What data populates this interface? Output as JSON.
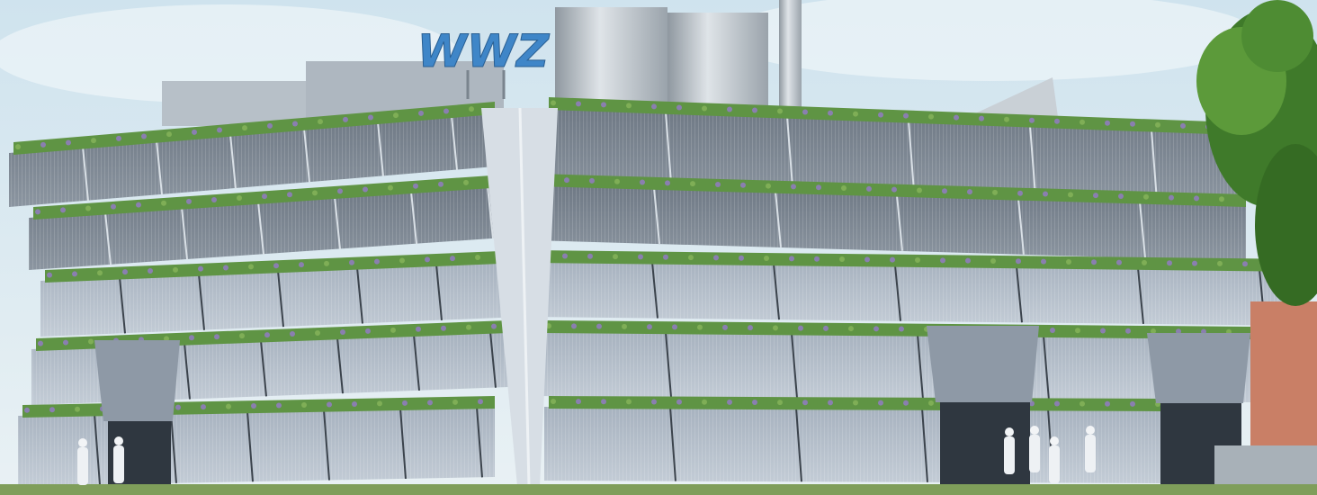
{
  "image": {
    "sign": "WWZ"
  }
}
